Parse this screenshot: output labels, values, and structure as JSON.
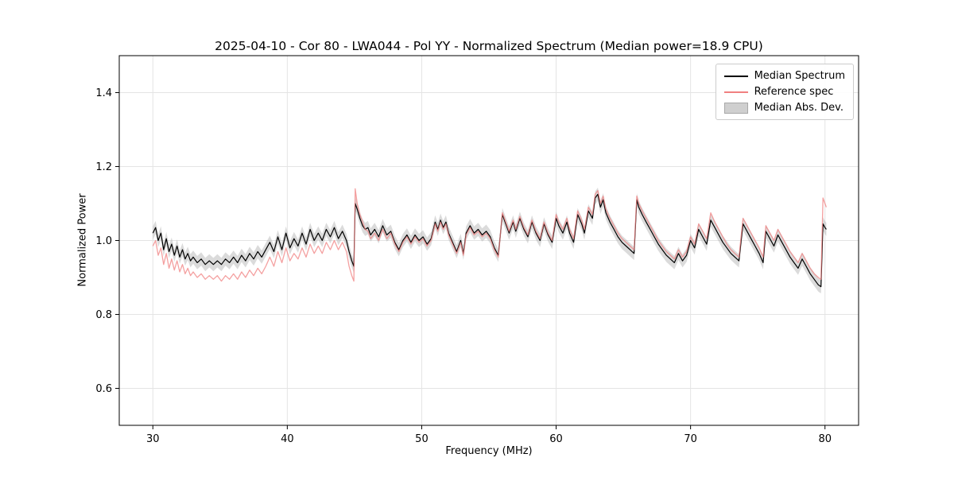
{
  "figure": {
    "title": "2025-04-10 - Cor 80 - LWA044 - Pol YY - Normalized Spectrum (Median power=18.9 CPU)",
    "xlabel": "Frequency (MHz)",
    "ylabel": "Normalized Power"
  },
  "legend": {
    "items": [
      {
        "label": "Median Spectrum",
        "type": "line",
        "color": "#000000"
      },
      {
        "label": "Reference spec",
        "type": "line",
        "color": "#f08080"
      },
      {
        "label": "Median Abs. Dev.",
        "type": "patch",
        "color": "#cfcfcf"
      }
    ]
  },
  "chart_data": {
    "type": "line",
    "title": "2025-04-10 - Cor 80 - LWA044 - Pol YY - Normalized Spectrum (Median power=18.9 CPU)",
    "xlabel": "Frequency (MHz)",
    "ylabel": "Normalized Power",
    "xlim": [
      27.5,
      82.5
    ],
    "ylim": [
      0.5,
      1.5
    ],
    "xticks": [
      30,
      40,
      50,
      60,
      70,
      80
    ],
    "yticks": [
      0.6,
      0.8,
      1.0,
      1.2,
      1.4
    ],
    "grid": true,
    "legend_position": "upper right",
    "x": [
      30.0,
      30.2,
      30.4,
      30.6,
      30.8,
      31.0,
      31.2,
      31.4,
      31.6,
      31.8,
      32.0,
      32.2,
      32.4,
      32.6,
      32.8,
      33.0,
      33.3,
      33.6,
      33.9,
      34.2,
      34.5,
      34.8,
      35.1,
      35.4,
      35.7,
      36.0,
      36.3,
      36.6,
      36.9,
      37.2,
      37.5,
      37.8,
      38.1,
      38.4,
      38.7,
      39.0,
      39.3,
      39.6,
      39.9,
      40.2,
      40.5,
      40.8,
      41.1,
      41.4,
      41.7,
      42.0,
      42.3,
      42.6,
      42.9,
      43.2,
      43.5,
      43.8,
      44.1,
      44.4,
      44.6,
      44.8,
      44.95,
      45.05,
      45.2,
      45.4,
      45.6,
      45.8,
      46.0,
      46.2,
      46.5,
      46.8,
      47.1,
      47.4,
      47.7,
      48.0,
      48.3,
      48.6,
      48.9,
      49.2,
      49.5,
      49.8,
      50.1,
      50.4,
      50.7,
      51.0,
      51.2,
      51.4,
      51.6,
      51.8,
      52.0,
      52.3,
      52.6,
      52.9,
      53.1,
      53.3,
      53.6,
      53.9,
      54.2,
      54.5,
      54.8,
      55.1,
      55.4,
      55.7,
      56.0,
      56.2,
      56.5,
      56.8,
      57.0,
      57.3,
      57.6,
      57.9,
      58.2,
      58.5,
      58.8,
      59.1,
      59.4,
      59.7,
      60.0,
      60.2,
      60.5,
      60.8,
      61.0,
      61.3,
      61.6,
      61.9,
      62.1,
      62.4,
      62.7,
      62.9,
      63.1,
      63.3,
      63.5,
      63.7,
      64.0,
      64.3,
      64.6,
      64.9,
      65.2,
      65.5,
      65.8,
      66.0,
      66.15,
      66.4,
      66.7,
      67.0,
      67.3,
      67.6,
      67.9,
      68.2,
      68.5,
      68.8,
      69.1,
      69.4,
      69.7,
      70.0,
      70.3,
      70.6,
      70.9,
      71.2,
      71.5,
      71.8,
      72.1,
      72.4,
      72.7,
      73.0,
      73.3,
      73.6,
      73.9,
      74.2,
      74.5,
      74.8,
      75.1,
      75.4,
      75.6,
      75.9,
      76.2,
      76.5,
      76.8,
      77.1,
      77.4,
      77.7,
      78.0,
      78.3,
      78.6,
      78.9,
      79.2,
      79.5,
      79.7,
      79.85,
      80.0,
      80.1
    ],
    "series": [
      {
        "name": "Median Spectrum",
        "color": "#000000",
        "width": 1.2,
        "opacity": 1.0,
        "values": [
          1.02,
          1.035,
          1.0,
          1.02,
          0.975,
          1.005,
          0.97,
          0.99,
          0.96,
          0.985,
          0.955,
          0.975,
          0.95,
          0.965,
          0.945,
          0.955,
          0.94,
          0.95,
          0.935,
          0.945,
          0.935,
          0.945,
          0.935,
          0.95,
          0.94,
          0.955,
          0.94,
          0.96,
          0.945,
          0.965,
          0.95,
          0.97,
          0.955,
          0.975,
          0.995,
          0.97,
          1.01,
          0.975,
          1.02,
          0.98,
          1.005,
          0.985,
          1.02,
          0.99,
          1.03,
          1.0,
          1.02,
          1.0,
          1.03,
          1.01,
          1.035,
          1.005,
          1.025,
          1.0,
          0.97,
          0.945,
          0.93,
          1.1,
          1.085,
          1.06,
          1.04,
          1.03,
          1.035,
          1.015,
          1.03,
          1.01,
          1.04,
          1.015,
          1.025,
          0.995,
          0.975,
          1.0,
          1.015,
          0.995,
          1.015,
          1.0,
          1.01,
          0.99,
          1.005,
          1.05,
          1.03,
          1.055,
          1.035,
          1.05,
          1.02,
          0.995,
          0.97,
          1.0,
          0.965,
          1.02,
          1.04,
          1.02,
          1.03,
          1.015,
          1.025,
          1.01,
          0.98,
          0.96,
          1.07,
          1.05,
          1.02,
          1.05,
          1.025,
          1.06,
          1.03,
          1.01,
          1.05,
          1.02,
          1.0,
          1.045,
          1.015,
          0.995,
          1.06,
          1.04,
          1.02,
          1.05,
          1.02,
          0.995,
          1.07,
          1.045,
          1.02,
          1.08,
          1.06,
          1.115,
          1.125,
          1.09,
          1.11,
          1.075,
          1.05,
          1.03,
          1.01,
          0.995,
          0.985,
          0.975,
          0.965,
          1.11,
          1.09,
          1.07,
          1.05,
          1.03,
          1.01,
          0.99,
          0.975,
          0.96,
          0.95,
          0.94,
          0.965,
          0.945,
          0.96,
          1.0,
          0.98,
          1.03,
          1.01,
          0.99,
          1.055,
          1.035,
          1.015,
          0.995,
          0.98,
          0.965,
          0.955,
          0.945,
          1.045,
          1.025,
          1.005,
          0.985,
          0.965,
          0.94,
          1.025,
          1.005,
          0.985,
          1.015,
          0.995,
          0.975,
          0.955,
          0.94,
          0.925,
          0.95,
          0.93,
          0.91,
          0.895,
          0.88,
          0.875,
          1.045,
          1.035,
          1.03
        ]
      },
      {
        "name": "Reference spec",
        "color": "#f08080",
        "width": 1.3,
        "opacity": 0.75,
        "values": [
          0.985,
          1.0,
          0.96,
          0.98,
          0.935,
          0.965,
          0.925,
          0.95,
          0.92,
          0.945,
          0.915,
          0.935,
          0.91,
          0.925,
          0.905,
          0.915,
          0.9,
          0.91,
          0.895,
          0.905,
          0.895,
          0.905,
          0.89,
          0.905,
          0.895,
          0.91,
          0.895,
          0.915,
          0.9,
          0.92,
          0.905,
          0.925,
          0.91,
          0.93,
          0.955,
          0.93,
          0.97,
          0.94,
          0.98,
          0.945,
          0.965,
          0.95,
          0.98,
          0.955,
          0.99,
          0.965,
          0.985,
          0.965,
          0.995,
          0.975,
          1.0,
          0.975,
          0.995,
          0.97,
          0.93,
          0.905,
          0.89,
          1.14,
          1.1,
          1.07,
          1.05,
          1.03,
          1.025,
          1.005,
          1.02,
          1.0,
          1.03,
          1.005,
          1.02,
          0.99,
          0.97,
          0.995,
          1.01,
          0.99,
          1.01,
          0.995,
          1.005,
          0.985,
          1.0,
          1.045,
          1.025,
          1.05,
          1.03,
          1.045,
          1.015,
          0.99,
          0.965,
          0.995,
          0.96,
          1.015,
          1.035,
          1.015,
          1.025,
          1.01,
          1.02,
          1.005,
          0.975,
          0.955,
          1.075,
          1.055,
          1.025,
          1.055,
          1.03,
          1.065,
          1.035,
          1.015,
          1.055,
          1.025,
          1.005,
          1.05,
          1.02,
          1.0,
          1.07,
          1.05,
          1.03,
          1.06,
          1.03,
          1.005,
          1.08,
          1.055,
          1.03,
          1.09,
          1.07,
          1.125,
          1.135,
          1.1,
          1.12,
          1.085,
          1.06,
          1.04,
          1.02,
          1.005,
          0.995,
          0.985,
          0.975,
          1.12,
          1.1,
          1.08,
          1.06,
          1.04,
          1.02,
          1.0,
          0.985,
          0.97,
          0.96,
          0.95,
          0.975,
          0.955,
          0.97,
          1.01,
          0.99,
          1.045,
          1.025,
          1.005,
          1.075,
          1.05,
          1.03,
          1.01,
          0.99,
          0.975,
          0.965,
          0.955,
          1.06,
          1.04,
          1.02,
          1.0,
          0.98,
          0.955,
          1.04,
          1.02,
          1.0,
          1.03,
          1.01,
          0.99,
          0.97,
          0.955,
          0.94,
          0.965,
          0.945,
          0.925,
          0.91,
          0.9,
          0.895,
          1.115,
          1.1,
          1.09
        ]
      },
      {
        "name": "Median Abs. Dev.",
        "type": "band",
        "around": "Median Spectrum",
        "halfwidth": 0.018,
        "color": "#b0b0b0",
        "opacity": 0.45
      }
    ]
  }
}
